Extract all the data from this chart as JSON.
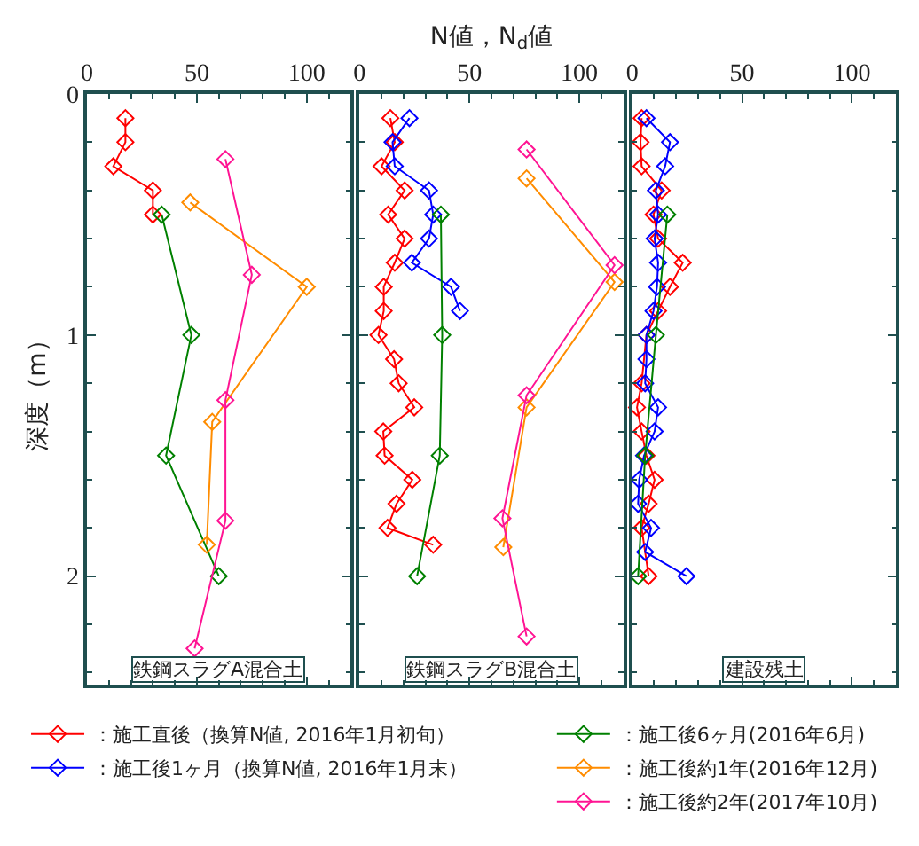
{
  "chart_data": [
    {
      "type": "line",
      "ylabel": "深度（m）",
      "xlim": [
        0,
        120
      ],
      "xticks": [
        0,
        50,
        100
      ],
      "ylim": [
        2.45,
        0
      ],
      "yticks": [
        0,
        1,
        2
      ],
      "marker": "diamond",
      "line_style": "solid",
      "annotations": [
        "鉄鋼スラグA混合土"
      ],
      "series": [
        {
          "color": "#ff0000",
          "x": [
            17.5,
            17.5,
            12,
            30,
            30
          ],
          "values": [
            0.1,
            0.2,
            0.3,
            0.4,
            0.5
          ]
        },
        {
          "color": "#008000",
          "x": [
            34,
            47.5,
            36,
            60
          ],
          "values": [
            0.5,
            1.0,
            1.5,
            2.0
          ]
        },
        {
          "color": "#ff8c00",
          "x": [
            47,
            100,
            57,
            54.5
          ],
          "values": [
            0.45,
            0.8,
            1.36,
            1.87
          ]
        },
        {
          "color": "#ff1493",
          "x": [
            63,
            75,
            63,
            63,
            49
          ],
          "values": [
            0.27,
            0.75,
            1.27,
            1.77,
            2.3
          ]
        }
      ]
    },
    {
      "type": "line",
      "xlabel": "N値，N$_{d}$値",
      "xlim": [
        0,
        120
      ],
      "xticks": [
        0,
        50,
        100
      ],
      "ylim": [
        2.45,
        0
      ],
      "yticks": [
        0,
        1,
        2
      ],
      "tick_labels": "x",
      "marker": "diamond",
      "line_style": "solid",
      "legend": "bottom",
      "annotations": [
        "鉄鋼スラグB混合土"
      ],
      "series": [
        {
          "name": "：施工直後（換算N値, 2016年1月初旬）",
          "color": "#ff0000",
          "x": [
            14,
            16,
            10,
            20.5,
            13,
            20.5,
            16,
            11,
            11,
            8.6,
            15.7,
            17.8,
            24.9,
            10.8,
            11.4,
            24,
            16.8,
            12.7,
            33.5
          ],
          "values": [
            0.1,
            0.2,
            0.3,
            0.4,
            0.5,
            0.6,
            0.7,
            0.8,
            0.9,
            1.0,
            1.1,
            1.2,
            1.3,
            1.4,
            1.5,
            1.6,
            1.7,
            1.8,
            1.87
          ]
        },
        {
          "name": "：施工後1ヶ月（換算N値, 2016年1月末）",
          "color": "#0000ff",
          "x": [
            22.7,
            15,
            16,
            31.6,
            33.5,
            31.6,
            23.8,
            41.6,
            45.7
          ],
          "values": [
            0.1,
            0.2,
            0.3,
            0.4,
            0.5,
            0.6,
            0.7,
            0.8,
            0.9
          ]
        },
        {
          "name": "：施工後6ヶ月(2016年6月)",
          "color": "#008000",
          "x": [
            37,
            37.6,
            36.5,
            26.2
          ],
          "values": [
            0.5,
            1.0,
            1.5,
            2.0
          ]
        },
        {
          "name": "：施工後約1年(2016年12月)",
          "color": "#ff8c00",
          "x": [
            76,
            116,
            76,
            65.4
          ],
          "values": [
            0.35,
            0.78,
            1.3,
            1.88
          ]
        },
        {
          "name": "：施工後約2年(2017年10月)",
          "color": "#ff1493",
          "x": [
            76,
            116,
            76,
            65,
            76
          ],
          "values": [
            0.23,
            0.71,
            1.25,
            1.76,
            2.25
          ]
        }
      ]
    },
    {
      "type": "line",
      "xlim": [
        0,
        120
      ],
      "xticks": [
        0,
        50,
        100
      ],
      "ylim": [
        2.45,
        0
      ],
      "yticks": [
        0,
        1,
        2
      ],
      "tick_labels": "x",
      "marker": "diamond",
      "line_style": "solid",
      "annotations": [
        "建設残土"
      ],
      "series": [
        {
          "color": "#ff0000",
          "x": [
            4.3,
            3.8,
            4.3,
            13.4,
            9.7,
            11.8,
            23,
            17.2,
            11.8,
            6.5,
            4.3,
            2.2,
            4.3,
            6.5,
            10.2,
            7.5,
            4.3,
            7.5
          ],
          "values": [
            0.1,
            0.2,
            0.3,
            0.4,
            0.5,
            0.6,
            0.7,
            0.8,
            0.9,
            1.0,
            1.2,
            1.3,
            1.4,
            1.5,
            1.6,
            1.7,
            1.8,
            2.0
          ]
        },
        {
          "color": "#0000ff",
          "x": [
            6.5,
            17.2,
            15,
            10.8,
            11.8,
            10.2,
            11.8,
            11.3,
            9.7,
            6.5,
            6.5,
            5.9,
            11.8,
            10.2,
            5.4,
            3.2,
            2.7,
            8.6,
            5.9,
            24.7
          ],
          "values": [
            0.1,
            0.2,
            0.3,
            0.4,
            0.5,
            0.6,
            0.7,
            0.8,
            0.9,
            1.0,
            1.1,
            1.2,
            1.3,
            1.4,
            1.5,
            1.6,
            1.7,
            1.8,
            1.9,
            2.0
          ]
        },
        {
          "color": "#008000",
          "x": [
            16,
            10.8,
            5.9,
            2.7
          ],
          "values": [
            0.5,
            1.0,
            1.5,
            2.0
          ]
        }
      ]
    }
  ]
}
